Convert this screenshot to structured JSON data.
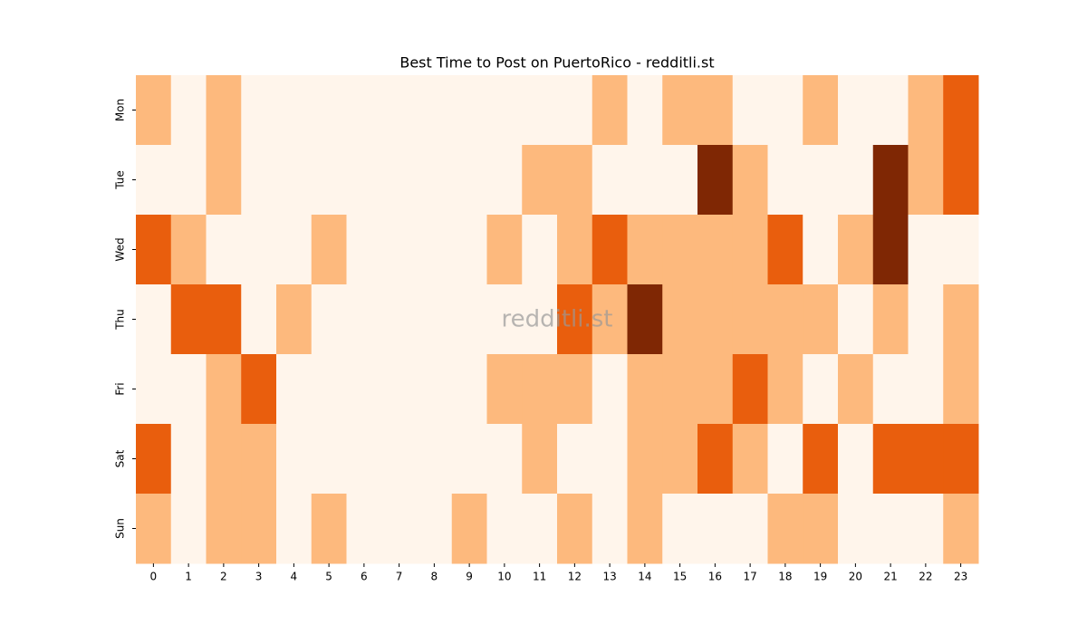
{
  "chart_data": {
    "type": "heatmap",
    "title": "Best Time to Post on PuertoRico - redditli.st",
    "watermark": "redditli.st",
    "x": [
      0,
      1,
      2,
      3,
      4,
      5,
      6,
      7,
      8,
      9,
      10,
      11,
      12,
      13,
      14,
      15,
      16,
      17,
      18,
      19,
      20,
      21,
      22,
      23
    ],
    "y": [
      "Mon",
      "Tue",
      "Wed",
      "Thu",
      "Fri",
      "Sat",
      "Sun"
    ],
    "values": [
      [
        1,
        0,
        1,
        0,
        0,
        0,
        0,
        0,
        0,
        0,
        0,
        0,
        0,
        1,
        0,
        1,
        1,
        0,
        0,
        1,
        0,
        0,
        1,
        2
      ],
      [
        0,
        0,
        1,
        0,
        0,
        0,
        0,
        0,
        0,
        0,
        0,
        1,
        1,
        0,
        0,
        0,
        3,
        1,
        0,
        0,
        0,
        3,
        1,
        2
      ],
      [
        2,
        1,
        0,
        0,
        0,
        1,
        0,
        0,
        0,
        0,
        1,
        0,
        1,
        2,
        1,
        1,
        1,
        1,
        2,
        0,
        1,
        3,
        0,
        0
      ],
      [
        0,
        2,
        2,
        0,
        1,
        0,
        0,
        0,
        0,
        0,
        0,
        0,
        2,
        1,
        3,
        1,
        1,
        1,
        1,
        1,
        0,
        1,
        0,
        1
      ],
      [
        0,
        0,
        1,
        2,
        0,
        0,
        0,
        0,
        0,
        0,
        1,
        1,
        1,
        0,
        1,
        1,
        1,
        2,
        1,
        0,
        1,
        0,
        0,
        1
      ],
      [
        2,
        0,
        1,
        1,
        0,
        0,
        0,
        0,
        0,
        0,
        0,
        1,
        0,
        0,
        1,
        1,
        2,
        1,
        0,
        2,
        0,
        2,
        2,
        2
      ],
      [
        1,
        0,
        1,
        1,
        0,
        1,
        0,
        0,
        0,
        1,
        0,
        0,
        1,
        0,
        1,
        0,
        0,
        0,
        1,
        1,
        0,
        0,
        0,
        1
      ]
    ],
    "vlim": [
      0,
      3
    ],
    "colormap": [
      "#fff5eb",
      "#fdb97d",
      "#e95e0d",
      "#7f2704"
    ]
  }
}
